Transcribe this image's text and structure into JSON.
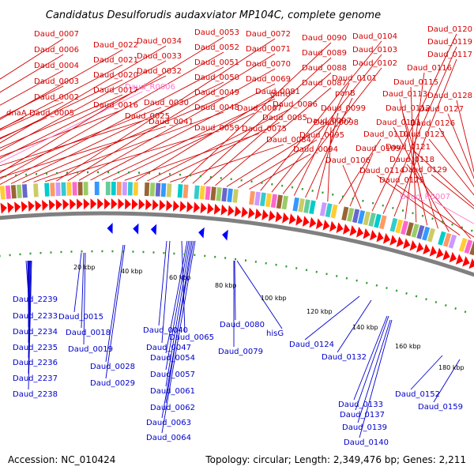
{
  "title": "Candidatus Desulforudis audaxviator MP104C, complete genome",
  "footer": {
    "accession": "Accession: NC_010424",
    "summary": "Topology: circular; Length: 2,349,476 bp; Genes: 2,211"
  },
  "colors": {
    "top_label": "#d40000",
    "rna_label": "#ff77cc",
    "bottom_label": "#0000cc",
    "forward_gene": "#ff0000",
    "reverse_gene": "#0000ff",
    "backbone": "#808080",
    "tick": "#339933"
  },
  "ticks": [
    "20 kbp",
    "40 kbp",
    "60 kbp",
    "80 kbp",
    "100 kbp",
    "120 kbp",
    "140 kbp",
    "160 kbp",
    "180 kbp"
  ],
  "top_labels": [
    "Daud_0007",
    "Daud_0006",
    "Daud_0004",
    "Daud_0003",
    "Daud_0002",
    "dnaA",
    "Daud_0005",
    "Daud_0022",
    "Daud_0021",
    "Daud_0020",
    "Daud_0017",
    "Daud_0016",
    "Daud_0025",
    "Daud_0034",
    "Daud_0033",
    "Daud_0032",
    "Daud_R0006",
    "Daud_0030",
    "Daud_0041",
    "Daud_0053",
    "Daud_0052",
    "Daud_0051",
    "Daud_0050",
    "Daud_0049",
    "Daud_0048",
    "Daud_0059",
    "Daud_0072",
    "Daud_0071",
    "Daud_0070",
    "Daud_0069",
    "glmU",
    "Daud_0067",
    "Daud_0075",
    "Daud_0081",
    "Daud_0086",
    "Daud_0085",
    "Daud_0084",
    "Daud_0090",
    "Daud_0089",
    "Daud_0088",
    "Daud_0087",
    "Daud_0097",
    "Daud_0095",
    "Daud_0094",
    "Daud_0104",
    "Daud_0103",
    "Daud_0102",
    "Daud_0101",
    "panB",
    "Daud_0099",
    "Daud_0098",
    "Daud_0110",
    "Daud_0109",
    "Daud_0106",
    "Daud_0120",
    "Daud_0119",
    "Daud_0117",
    "Daud_0116",
    "Daud_0115",
    "Daud_0113",
    "Daud_0112",
    "Daud_0111",
    "Daud_0114",
    "Daud_0118",
    "Daud_0125",
    "Daud_0128",
    "Daud_0127",
    "Daud_0126",
    "Daud_0123",
    "Daud_0121",
    "Daud_0129",
    "Daud_R0007"
  ],
  "bottom_labels": [
    "Daud_2239",
    "Daud_2233",
    "Daud_2234",
    "Daud_2235",
    "Daud_2236",
    "Daud_2237",
    "Daud_2238",
    "Daud_0015",
    "Daud_0018",
    "Daud_0019",
    "Daud_0028",
    "Daud_0029",
    "Daud_0040",
    "Daud_0047",
    "Daud_0065",
    "Daud_0054",
    "Daud_0057",
    "Daud_0061",
    "Daud_0062",
    "Daud_0063",
    "Daud_0064",
    "Daud_0080",
    "Daud_0079",
    "hisG",
    "Daud_0124",
    "Daud_0132",
    "Daud_0133",
    "Daud_0137",
    "Daud_0139",
    "Daud_0140",
    "Daud_0152",
    "Daud_0159"
  ]
}
